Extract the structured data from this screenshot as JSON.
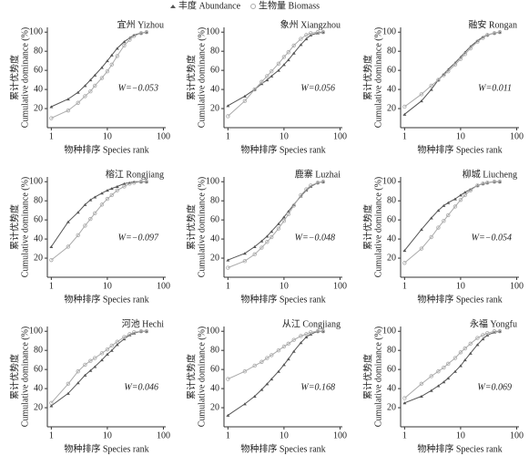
{
  "chart_data": [
    {
      "type": "line",
      "title": "宜州  Yizhou",
      "annotation": "W=−0.053",
      "xlabel": "物种排序  Species rank",
      "ylabel": [
        "累计优势度",
        "Cumulative dominance (%)"
      ],
      "log_x": true,
      "xlim": [
        0.85,
        110
      ],
      "ylim": [
        0,
        105
      ],
      "xticks": [
        1,
        10,
        100
      ],
      "yticks": [
        20,
        40,
        60,
        80,
        100
      ],
      "x": [
        1,
        2,
        3,
        4,
        5,
        6,
        8,
        10,
        12,
        15,
        20,
        25,
        30,
        40,
        50
      ],
      "series": [
        {
          "name": "丰度 Abundance",
          "color": "#555555",
          "values": [
            22,
            30,
            37,
            44,
            50,
            55,
            63,
            70,
            76,
            83,
            90,
            94,
            97,
            99,
            100
          ]
        },
        {
          "name": "生物量 Biomass",
          "color": "#aaaaaa",
          "values": [
            10,
            18,
            26,
            33,
            38,
            44,
            52,
            59,
            66,
            75,
            86,
            92,
            96,
            99,
            100
          ]
        }
      ]
    },
    {
      "type": "line",
      "title": "象州  Xiangzhou",
      "annotation": "W=0.056",
      "xlabel": "物种排序  Species rank",
      "ylabel": [
        "累计优势度",
        "Cumulative dominance (%)"
      ],
      "log_x": true,
      "xlim": [
        0.85,
        110
      ],
      "ylim": [
        0,
        105
      ],
      "xticks": [
        1,
        10,
        100
      ],
      "yticks": [
        20,
        40,
        60,
        80,
        100
      ],
      "x": [
        1,
        2,
        3,
        4,
        5,
        6,
        8,
        10,
        12,
        15,
        20,
        25,
        30,
        40,
        50
      ],
      "series": [
        {
          "color": "#555555",
          "values": [
            23,
            33,
            40,
            46,
            50,
            54,
            60,
            66,
            71,
            78,
            87,
            93,
            97,
            99,
            100
          ]
        },
        {
          "color": "#aaaaaa",
          "values": [
            12,
            28,
            40,
            48,
            54,
            59,
            67,
            74,
            79,
            86,
            93,
            97,
            99,
            100,
            100
          ]
        }
      ]
    },
    {
      "type": "line",
      "title": "融安  Rongan",
      "annotation": "W=0.011",
      "xlabel": "物种排序  Species rank",
      "ylabel": [
        "累计优势度",
        "Cumulative dominance (%)"
      ],
      "log_x": true,
      "xlim": [
        0.85,
        110
      ],
      "ylim": [
        0,
        105
      ],
      "xticks": [
        1,
        10,
        100
      ],
      "yticks": [
        20,
        40,
        60,
        80,
        100
      ],
      "x": [
        1,
        2,
        3,
        4,
        5,
        6,
        8,
        10,
        12,
        15,
        20,
        25,
        30,
        40,
        50
      ],
      "series": [
        {
          "color": "#555555",
          "values": [
            14,
            28,
            40,
            50,
            56,
            61,
            68,
            74,
            79,
            85,
            91,
            95,
            97,
            99,
            100
          ]
        },
        {
          "color": "#aaaaaa",
          "values": [
            22,
            35,
            44,
            50,
            55,
            59,
            66,
            72,
            77,
            83,
            90,
            94,
            97,
            99,
            100
          ]
        }
      ]
    },
    {
      "type": "line",
      "title": "榕江  Rongjiang",
      "annotation": "W=−0.097",
      "xlabel": "物种排序  Species rank",
      "ylabel": [
        "累计优势度",
        "Cumulative dominance (%)"
      ],
      "log_x": true,
      "xlim": [
        0.85,
        110
      ],
      "ylim": [
        0,
        105
      ],
      "xticks": [
        1,
        10,
        100
      ],
      "yticks": [
        20,
        40,
        60,
        80,
        100
      ],
      "x": [
        1,
        2,
        3,
        4,
        5,
        6,
        8,
        10,
        12,
        15,
        20,
        25,
        30,
        40,
        50
      ],
      "series": [
        {
          "color": "#555555",
          "values": [
            32,
            58,
            68,
            76,
            81,
            84,
            88,
            91,
            93,
            95,
            98,
            99,
            100,
            100,
            100
          ]
        },
        {
          "color": "#aaaaaa",
          "values": [
            18,
            32,
            44,
            54,
            61,
            67,
            76,
            82,
            86,
            91,
            95,
            98,
            99,
            100,
            100
          ]
        }
      ]
    },
    {
      "type": "line",
      "title": "鹿寨  Luzhai",
      "annotation": "W=−0.048",
      "xlabel": "物种排序  Species rank",
      "ylabel": [
        "累计优势度",
        "Cumulative dominance (%)"
      ],
      "log_x": true,
      "xlim": [
        0.85,
        110
      ],
      "ylim": [
        0,
        105
      ],
      "xticks": [
        1,
        10,
        100
      ],
      "yticks": [
        20,
        40,
        60,
        80,
        100
      ],
      "x": [
        1,
        2,
        3,
        4,
        5,
        6,
        8,
        10,
        12,
        15,
        20,
        25,
        30,
        40,
        50
      ],
      "series": [
        {
          "color": "#555555",
          "values": [
            18,
            25,
            32,
            38,
            43,
            48,
            56,
            63,
            69,
            76,
            85,
            91,
            95,
            99,
            100
          ]
        },
        {
          "color": "#aaaaaa",
          "values": [
            10,
            17,
            24,
            31,
            37,
            42,
            51,
            59,
            66,
            75,
            86,
            92,
            96,
            99,
            100
          ]
        }
      ]
    },
    {
      "type": "line",
      "title": "柳城  Liucheng",
      "annotation": "W=−0.054",
      "xlabel": "物种排序  Species rank",
      "ylabel": [
        "累计优势度",
        "Cumulative dominance (%)"
      ],
      "log_x": true,
      "xlim": [
        0.85,
        110
      ],
      "ylim": [
        0,
        105
      ],
      "xticks": [
        1,
        10,
        100
      ],
      "yticks": [
        20,
        40,
        60,
        80,
        100
      ],
      "x": [
        1,
        2,
        3,
        4,
        5,
        6,
        8,
        10,
        12,
        15,
        20,
        25,
        30,
        40,
        50
      ],
      "series": [
        {
          "color": "#555555",
          "values": [
            28,
            50,
            62,
            70,
            75,
            78,
            82,
            86,
            89,
            92,
            96,
            98,
            99,
            100,
            100
          ]
        },
        {
          "color": "#aaaaaa",
          "values": [
            15,
            30,
            42,
            52,
            59,
            65,
            74,
            81,
            86,
            91,
            96,
            98,
            99,
            100,
            100
          ]
        }
      ]
    },
    {
      "type": "line",
      "title": "河池  Hechi",
      "annotation": "W=0.046",
      "xlabel": "物种排序  Species rank",
      "ylabel": [
        "累计优势度",
        "Cumulative dominance (%)"
      ],
      "log_x": true,
      "xlim": [
        0.85,
        110
      ],
      "ylim": [
        0,
        105
      ],
      "xticks": [
        1,
        10,
        100
      ],
      "yticks": [
        20,
        40,
        60,
        80,
        100
      ],
      "x": [
        1,
        2,
        3,
        4,
        5,
        6,
        8,
        10,
        12,
        15,
        20,
        25,
        30,
        40,
        50
      ],
      "series": [
        {
          "color": "#555555",
          "values": [
            22,
            35,
            46,
            54,
            59,
            63,
            70,
            76,
            80,
            86,
            92,
            96,
            98,
            100,
            100
          ]
        },
        {
          "color": "#aaaaaa",
          "values": [
            25,
            45,
            58,
            65,
            69,
            72,
            77,
            81,
            85,
            89,
            94,
            97,
            99,
            100,
            100
          ]
        }
      ]
    },
    {
      "type": "line",
      "title": "从江  Congjiang",
      "annotation": "W=0.168",
      "xlabel": "物种排序  Species rank",
      "ylabel": [
        "累计优势度",
        "Cumulative dominance (%)"
      ],
      "log_x": true,
      "xlim": [
        0.85,
        110
      ],
      "ylim": [
        0,
        105
      ],
      "xticks": [
        1,
        10,
        100
      ],
      "yticks": [
        20,
        40,
        60,
        80,
        100
      ],
      "x": [
        1,
        2,
        3,
        4,
        5,
        6,
        8,
        10,
        12,
        15,
        20,
        25,
        30,
        40,
        50
      ],
      "series": [
        {
          "color": "#555555",
          "values": [
            12,
            24,
            32,
            39,
            45,
            50,
            58,
            65,
            71,
            79,
            88,
            94,
            97,
            100,
            100
          ]
        },
        {
          "color": "#aaaaaa",
          "values": [
            50,
            58,
            64,
            68,
            72,
            75,
            80,
            84,
            87,
            91,
            95,
            97,
            99,
            100,
            100
          ]
        }
      ]
    },
    {
      "type": "line",
      "title": "永福  Yongfu",
      "annotation": "W=0.069",
      "xlabel": "物种排序  Species rank",
      "ylabel": [
        "累计优势度",
        "Cumulative dominance (%)"
      ],
      "log_x": true,
      "xlim": [
        0.85,
        110
      ],
      "ylim": [
        0,
        105
      ],
      "xticks": [
        1,
        10,
        100
      ],
      "yticks": [
        20,
        40,
        60,
        80,
        100
      ],
      "x": [
        1,
        2,
        3,
        4,
        5,
        6,
        8,
        10,
        12,
        15,
        20,
        25,
        30,
        40,
        50
      ],
      "series": [
        {
          "color": "#555555",
          "values": [
            25,
            32,
            38,
            43,
            47,
            51,
            58,
            64,
            70,
            77,
            86,
            92,
            96,
            99,
            100
          ]
        },
        {
          "color": "#aaaaaa",
          "values": [
            30,
            45,
            53,
            58,
            62,
            66,
            72,
            78,
            82,
            87,
            93,
            96,
            98,
            100,
            100
          ]
        }
      ]
    }
  ]
}
